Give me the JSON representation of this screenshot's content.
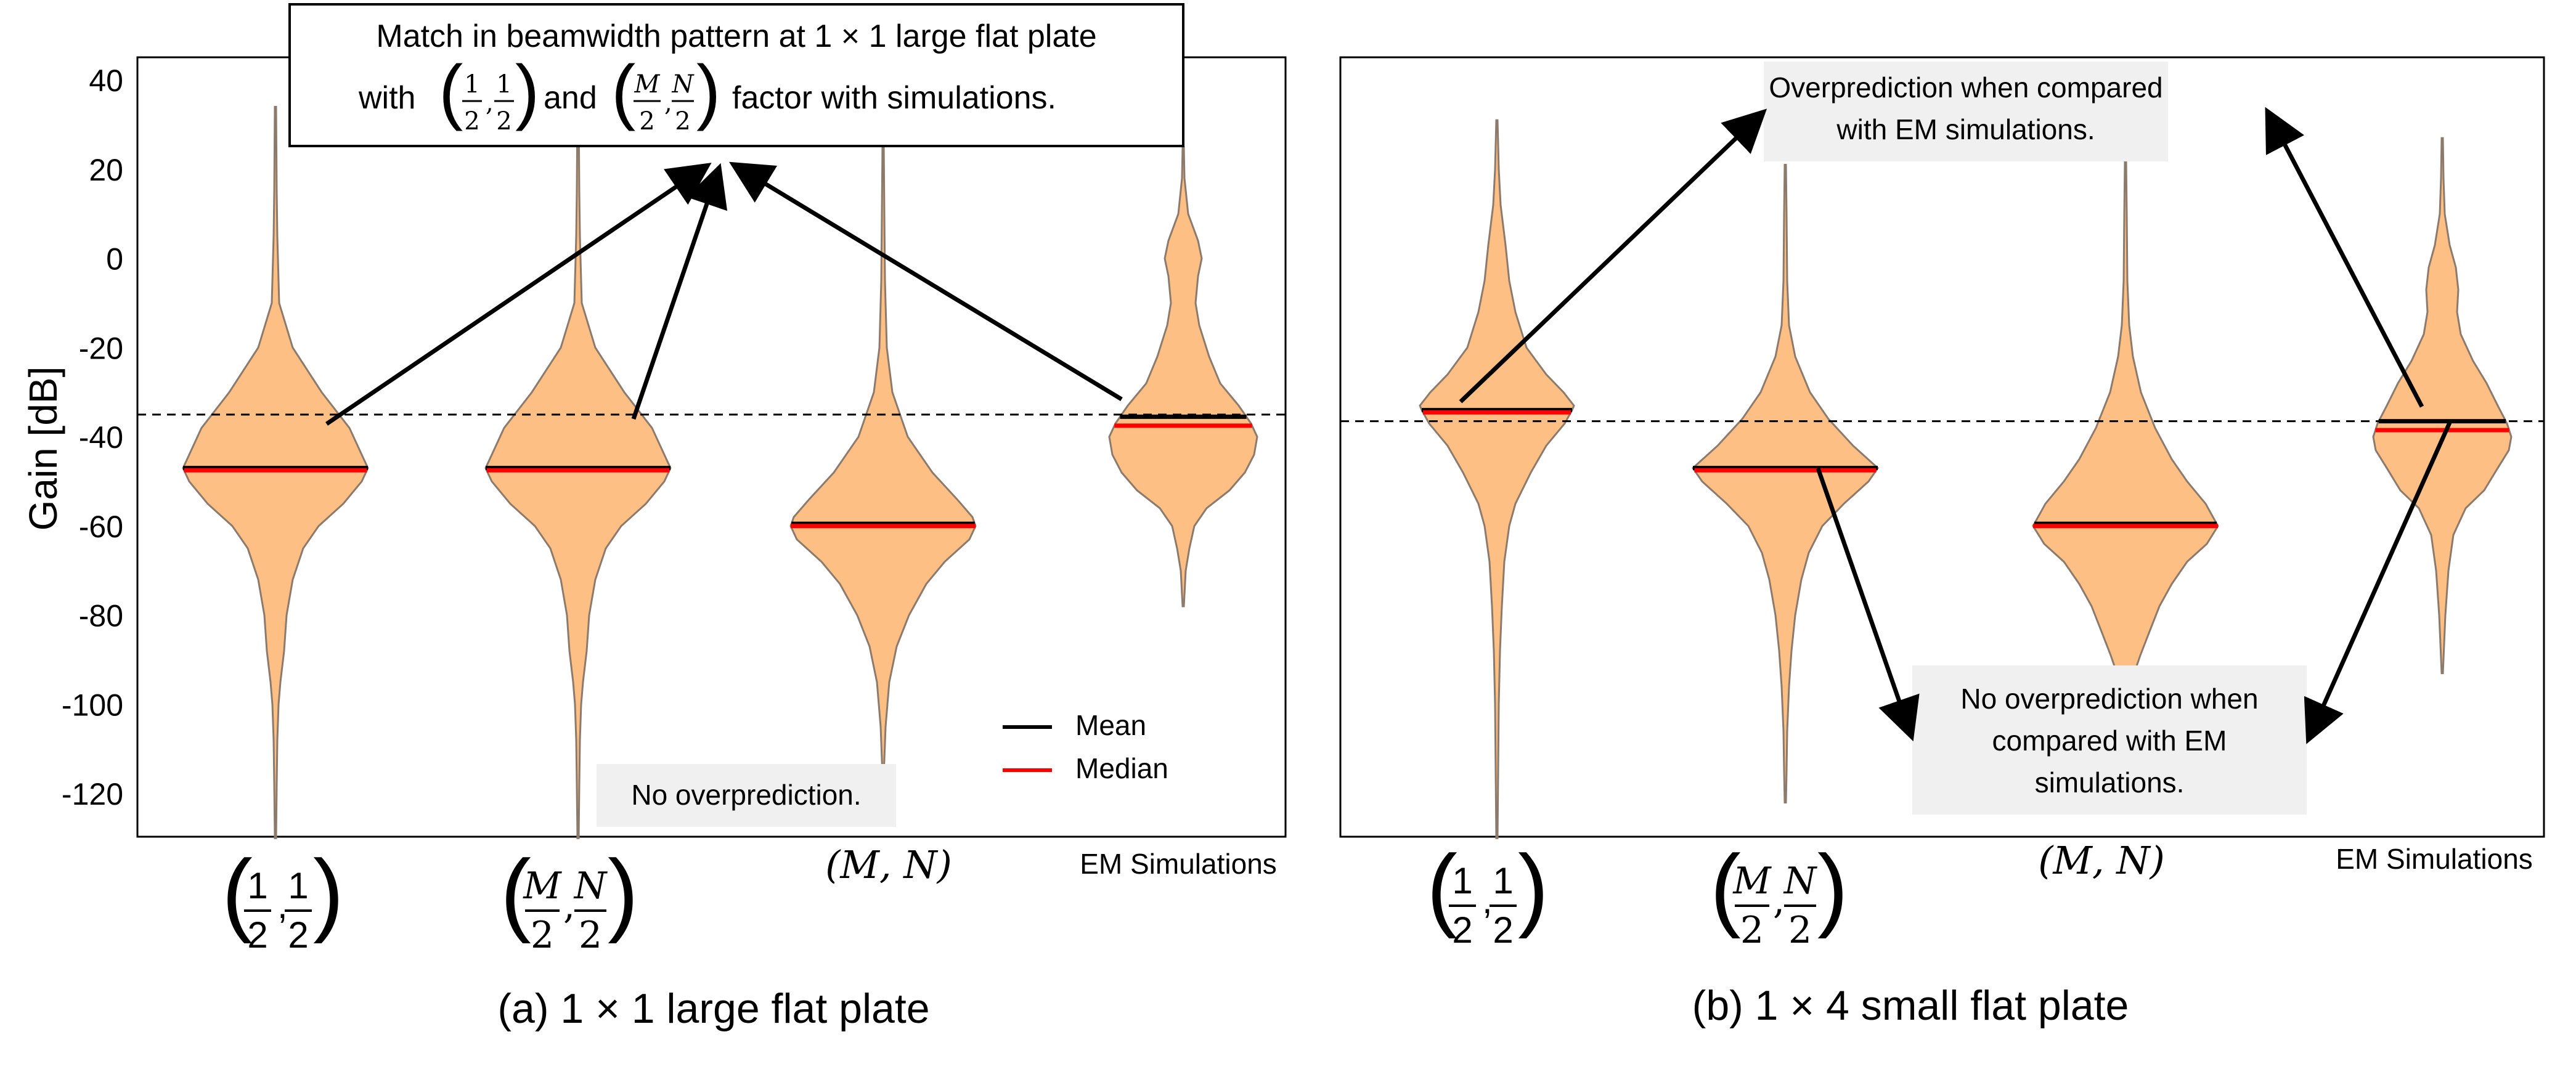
{
  "chart_data": [
    {
      "type": "violin",
      "caption": "(a) 1 × 1 large flat plate",
      "ylabel": "Gain [dB]",
      "ylim": [
        -130,
        45
      ],
      "yticks": [
        40,
        20,
        0,
        -20,
        -40,
        -60,
        -80,
        -100,
        -120
      ],
      "grid": false,
      "reference_line": -35,
      "categories": [
        {
          "label": "(1/2, 1/2)",
          "mean": -47,
          "median": -47.5,
          "min": -130,
          "max": 34
        },
        {
          "label": "(M/2, N/2)",
          "mean": -47,
          "median": -47.5,
          "min": -130,
          "max": 34
        },
        {
          "label": "(M, N)",
          "mean": -59.5,
          "median": -60,
          "min": -116,
          "max": 26
        },
        {
          "label": "EM Simulations",
          "mean": -35.5,
          "median": -37.5,
          "min": -78,
          "max": 25
        }
      ],
      "legend": {
        "position": "bottom-right",
        "entries": [
          {
            "name": "Mean",
            "color": "#000000"
          },
          {
            "name": "Median",
            "color": "#ff0000"
          }
        ]
      },
      "annotations": [
        {
          "text_line1": "Match in beamwidth pattern at 1 × 1 large flat plate",
          "text_line2_with": "with",
          "text_line2_and": "and",
          "text_line2_tail": "factor with simulations."
        },
        {
          "text": "No overprediction."
        }
      ]
    },
    {
      "type": "violin",
      "caption": "(b) 1 × 4 small flat plate",
      "ylim": [
        -130,
        45
      ],
      "grid": false,
      "reference_line": -36.5,
      "categories": [
        {
          "label": "(1/2, 1/2)",
          "mean": -34,
          "median": -34.5,
          "min": -130,
          "max": 31
        },
        {
          "label": "(M/2, N/2)",
          "mean": -47,
          "median": -47.5,
          "min": -122,
          "max": 21
        },
        {
          "label": "(M, N)",
          "mean": -59.5,
          "median": -60,
          "min": -93,
          "max": 22
        },
        {
          "label": "EM Simulations",
          "mean": -36.5,
          "median": -38.5,
          "min": -93,
          "max": 27
        }
      ],
      "annotations": [
        {
          "text_line1": "Overprediction when compared",
          "text_line2": "with EM simulations."
        },
        {
          "text_line1": "No overprediction when",
          "text_line2": "compared with EM",
          "text_line3": "simulations."
        }
      ]
    }
  ],
  "colors": {
    "violin_fill": "#fdbf84",
    "violin_edge": "#8c7b6c",
    "mean": "#000000",
    "median": "#ff0000",
    "box_fill": "#f0f0f0"
  }
}
